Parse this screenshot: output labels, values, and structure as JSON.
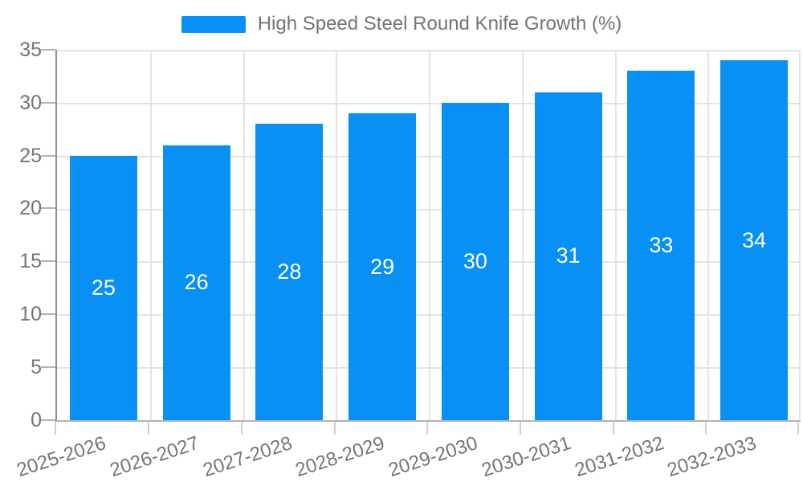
{
  "legend": {
    "label": "High Speed Steel Round Knife Growth (%)"
  },
  "chart_data": {
    "type": "bar",
    "title": "High Speed Steel Round Knife Growth (%)",
    "categories": [
      "2025-2026",
      "2026-2027",
      "2027-2028",
      "2028-2029",
      "2029-2030",
      "2030-2031",
      "2031-2032",
      "2032-2033"
    ],
    "values": [
      25,
      26,
      28,
      29,
      30,
      31,
      33,
      34
    ],
    "xlabel": "",
    "ylabel": "",
    "ylim": [
      0,
      35
    ],
    "y_tick_step": 5,
    "y_tick_labels": [
      "35",
      "30",
      "25",
      "20",
      "15",
      "10",
      "5",
      "0"
    ],
    "grid": true,
    "legend_position": "top",
    "bar_color": "#0990F5",
    "axis_label_color": "#757575",
    "grid_color": "#E3E3E3",
    "value_label_color": "#FFFFFF"
  }
}
